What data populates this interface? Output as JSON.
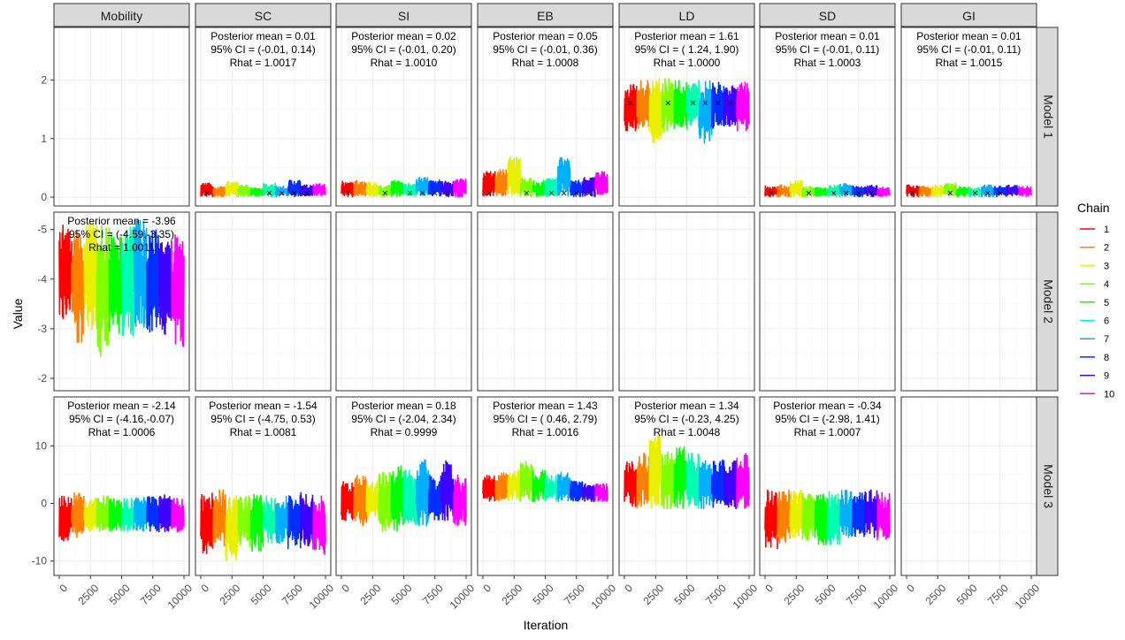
{
  "chart_data": {
    "type": "line",
    "xlabel": "Iteration",
    "ylabel": "Value",
    "x_ticks": [
      0,
      2500,
      5000,
      7500,
      10000
    ],
    "x_range": [
      0,
      10000
    ],
    "columns": [
      "Mobility",
      "SC",
      "SI",
      "EB",
      "LD",
      "SD",
      "GI"
    ],
    "rows": [
      {
        "label": "Model 1",
        "ylim": [
          -0.15,
          2.9
        ],
        "y_ticks": [
          0,
          1,
          2
        ],
        "reversed": false
      },
      {
        "label": "Model 2",
        "ylim": [
          -5.35,
          -1.75
        ],
        "y_ticks": [
          -2,
          -3,
          -4,
          -5
        ],
        "reversed": true
      },
      {
        "label": "Model 3",
        "ylim": [
          -12.5,
          18.5
        ],
        "y_ticks": [
          -10,
          0,
          10
        ],
        "reversed": false
      }
    ],
    "legend": {
      "title": "Chain",
      "position": "right",
      "items": [
        {
          "label": "1",
          "color": "#ff0000"
        },
        {
          "label": "2",
          "color": "#ff8000"
        },
        {
          "label": "3",
          "color": "#e8f000"
        },
        {
          "label": "4",
          "color": "#80ff00"
        },
        {
          "label": "5",
          "color": "#00ff00"
        },
        {
          "label": "6",
          "color": "#00ffb0"
        },
        {
          "label": "7",
          "color": "#00b0ff"
        },
        {
          "label": "8",
          "color": "#0030ff"
        },
        {
          "label": "9",
          "color": "#4000ff"
        },
        {
          "label": "10",
          "color": "#ff00ff"
        }
      ]
    },
    "panels": [
      {
        "row": 0,
        "col": 1,
        "mean": "Posterior mean = 0.01",
        "ci": "95% CI = (-0.01, 0.14)",
        "rhat": "Rhat = 1.0017",
        "chains": [
          [
            0,
            0.25
          ],
          [
            0,
            0.2
          ],
          [
            0,
            0.28
          ],
          [
            0,
            0.22
          ],
          [
            0,
            0.18
          ],
          [
            0,
            0.25
          ],
          [
            0,
            0.2
          ],
          [
            0,
            0.3
          ],
          [
            0,
            0.22
          ],
          [
            0,
            0.24
          ]
        ],
        "markers": [
          {
            "x": 500,
            "y": 0.07
          },
          {
            "x": 5500,
            "y": 0.07
          },
          {
            "x": 6500,
            "y": 0.07
          },
          {
            "x": 7500,
            "y": 0.07
          },
          {
            "x": 8500,
            "y": 0.07
          }
        ]
      },
      {
        "row": 0,
        "col": 2,
        "mean": "Posterior mean = 0.02",
        "ci": "95% CI = (-0.01, 0.20)",
        "rhat": "Rhat = 1.0010",
        "chains": [
          [
            0,
            0.28
          ],
          [
            0,
            0.3
          ],
          [
            0,
            0.26
          ],
          [
            0,
            0.22
          ],
          [
            0,
            0.3
          ],
          [
            0,
            0.25
          ],
          [
            0,
            0.35
          ],
          [
            0,
            0.3
          ],
          [
            0,
            0.28
          ],
          [
            0,
            0.32
          ]
        ],
        "markers": [
          {
            "x": 500,
            "y": 0.07
          },
          {
            "x": 3500,
            "y": 0.07
          },
          {
            "x": 5500,
            "y": 0.07
          },
          {
            "x": 6500,
            "y": 0.07
          },
          {
            "x": 7500,
            "y": 0.07
          },
          {
            "x": 8500,
            "y": 0.07
          }
        ]
      },
      {
        "row": 0,
        "col": 3,
        "mean": "Posterior mean = 0.05",
        "ci": "95% CI = (-0.01, 0.36)",
        "rhat": "Rhat = 1.0008",
        "chains": [
          [
            0,
            0.45
          ],
          [
            0,
            0.5
          ],
          [
            0,
            0.7
          ],
          [
            0,
            0.35
          ],
          [
            0,
            0.3
          ],
          [
            0,
            0.35
          ],
          [
            0,
            0.68
          ],
          [
            0,
            0.3
          ],
          [
            0,
            0.35
          ],
          [
            0,
            0.45
          ]
        ],
        "markers": [
          {
            "x": 500,
            "y": 0.07
          },
          {
            "x": 3500,
            "y": 0.07
          },
          {
            "x": 5500,
            "y": 0.07
          },
          {
            "x": 6500,
            "y": 0.07
          },
          {
            "x": 7500,
            "y": 0.07
          },
          {
            "x": 8500,
            "y": 0.07
          }
        ]
      },
      {
        "row": 0,
        "col": 4,
        "mean": "Posterior mean = 1.61",
        "ci": "95% CI = ( 1.24, 1.90)",
        "rhat": "Rhat = 1.0000",
        "chains": [
          [
            1.1,
            1.95
          ],
          [
            1.15,
            2.0
          ],
          [
            0.9,
            2.1
          ],
          [
            1.1,
            2.05
          ],
          [
            1.15,
            2.0
          ],
          [
            1.2,
            2.0
          ],
          [
            0.9,
            2.0
          ],
          [
            1.15,
            2.0
          ],
          [
            1.2,
            1.98
          ],
          [
            1.1,
            2.0
          ]
        ],
        "markers": [
          {
            "x": 500,
            "y": 1.61
          },
          {
            "x": 3500,
            "y": 1.61
          },
          {
            "x": 5500,
            "y": 1.61
          },
          {
            "x": 6500,
            "y": 1.61
          },
          {
            "x": 7500,
            "y": 1.61
          },
          {
            "x": 8500,
            "y": 1.61
          }
        ]
      },
      {
        "row": 0,
        "col": 5,
        "mean": "Posterior mean = 0.01",
        "ci": "95% CI = (-0.01, 0.11)",
        "rhat": "Rhat = 1.0003",
        "chains": [
          [
            0,
            0.2
          ],
          [
            0,
            0.22
          ],
          [
            0,
            0.3
          ],
          [
            0,
            0.2
          ],
          [
            0,
            0.18
          ],
          [
            0,
            0.22
          ],
          [
            0,
            0.25
          ],
          [
            0,
            0.2
          ],
          [
            0,
            0.22
          ],
          [
            0,
            0.18
          ]
        ],
        "markers": [
          {
            "x": 500,
            "y": 0.07
          },
          {
            "x": 3500,
            "y": 0.07
          },
          {
            "x": 5500,
            "y": 0.07
          },
          {
            "x": 6500,
            "y": 0.07
          },
          {
            "x": 7500,
            "y": 0.07
          },
          {
            "x": 8500,
            "y": 0.07
          }
        ]
      },
      {
        "row": 0,
        "col": 6,
        "mean": "Posterior mean = 0.01",
        "ci": "95% CI = (-0.01, 0.11)",
        "rhat": "Rhat = 1.0015",
        "chains": [
          [
            0,
            0.22
          ],
          [
            0,
            0.2
          ],
          [
            0,
            0.22
          ],
          [
            0,
            0.25
          ],
          [
            0,
            0.2
          ],
          [
            0,
            0.18
          ],
          [
            0,
            0.22
          ],
          [
            0,
            0.2
          ],
          [
            0,
            0.22
          ],
          [
            0,
            0.2
          ]
        ],
        "markers": [
          {
            "x": 500,
            "y": 0.07
          },
          {
            "x": 3500,
            "y": 0.07
          },
          {
            "x": 5500,
            "y": 0.07
          },
          {
            "x": 6500,
            "y": 0.07
          },
          {
            "x": 7500,
            "y": 0.07
          }
        ]
      },
      {
        "row": 1,
        "col": 0,
        "mean": "Posterior mean = -3.96",
        "ci": "95% CI = (-4.59,-3.35)",
        "rhat": "Rhat = 1.0011",
        "chains": [
          [
            -5.1,
            -3.1
          ],
          [
            -5.0,
            -2.7
          ],
          [
            -5.2,
            -2.9
          ],
          [
            -5.1,
            -2.4
          ],
          [
            -5.0,
            -2.9
          ],
          [
            -5.2,
            -2.8
          ],
          [
            -5.2,
            -3.0
          ],
          [
            -5.0,
            -2.9
          ],
          [
            -4.9,
            -2.8
          ],
          [
            -4.9,
            -2.6
          ]
        ],
        "markers": []
      },
      {
        "row": 2,
        "col": 0,
        "mean": "Posterior mean = -2.14",
        "ci": "95% CI = (-4.16,-0.07)",
        "rhat": "Rhat = 1.0006",
        "chains": [
          [
            -6.8,
            1.5
          ],
          [
            -6.0,
            2.0
          ],
          [
            -5.0,
            1.0
          ],
          [
            -5.0,
            1.5
          ],
          [
            -5.0,
            1.0
          ],
          [
            -5.0,
            1.0
          ],
          [
            -5.0,
            1.2
          ],
          [
            -5.0,
            1.3
          ],
          [
            -5.0,
            1.6
          ],
          [
            -5.2,
            1.0
          ]
        ],
        "markers": []
      },
      {
        "row": 2,
        "col": 1,
        "mean": "Posterior mean = -1.54",
        "ci": "95% CI = (-4.75, 0.53)",
        "rhat": "Rhat = 1.0081",
        "chains": [
          [
            -9.0,
            2.0
          ],
          [
            -8.0,
            2.5
          ],
          [
            -10.5,
            1.5
          ],
          [
            -8.0,
            1.5
          ],
          [
            -8.5,
            2.0
          ],
          [
            -7.0,
            1.5
          ],
          [
            -7.0,
            1.5
          ],
          [
            -8.0,
            1.5
          ],
          [
            -7.5,
            2.0
          ],
          [
            -9.0,
            1.5
          ]
        ],
        "markers": []
      },
      {
        "row": 2,
        "col": 2,
        "mean": "Posterior mean =  0.18",
        "ci": "95% CI = (-2.04, 2.34)",
        "rhat": "Rhat = 0.9999",
        "chains": [
          [
            -3.0,
            4.0
          ],
          [
            -4.0,
            5.0
          ],
          [
            -3.0,
            4.0
          ],
          [
            -5.0,
            6.0
          ],
          [
            -5.0,
            7.0
          ],
          [
            -4.0,
            6.0
          ],
          [
            -4.0,
            8.0
          ],
          [
            -3.0,
            5.0
          ],
          [
            -3.0,
            7.5
          ],
          [
            -4.0,
            5.0
          ]
        ],
        "markers": []
      },
      {
        "row": 2,
        "col": 3,
        "mean": "Posterior mean =  1.43",
        "ci": "95% CI = ( 0.46, 2.79)",
        "rhat": "Rhat = 1.0016",
        "chains": [
          [
            0.2,
            5.0
          ],
          [
            0.3,
            5.5
          ],
          [
            0.2,
            6.0
          ],
          [
            0.2,
            7.5
          ],
          [
            0.2,
            6.0
          ],
          [
            0.3,
            5.0
          ],
          [
            0.2,
            5.5
          ],
          [
            0.3,
            4.0
          ],
          [
            0.2,
            3.5
          ],
          [
            0.2,
            3.5
          ]
        ],
        "markers": []
      },
      {
        "row": 2,
        "col": 4,
        "mean": "Posterior mean =  1.34",
        "ci": "95% CI = (-0.23, 4.25)",
        "rhat": "Rhat = 1.0048",
        "chains": [
          [
            -1.0,
            8.0
          ],
          [
            -1.0,
            9.0
          ],
          [
            -1.0,
            12.0
          ],
          [
            -1.0,
            9.0
          ],
          [
            -1.0,
            10.0
          ],
          [
            -1.0,
            9.0
          ],
          [
            -1.0,
            8.0
          ],
          [
            -1.0,
            8.0
          ],
          [
            -1.0,
            7.5
          ],
          [
            -1.0,
            9.0
          ]
        ],
        "markers": []
      },
      {
        "row": 2,
        "col": 5,
        "mean": "Posterior mean = -0.34",
        "ci": "95% CI = (-2.98, 1.41)",
        "rhat": "Rhat = 1.0007",
        "chains": [
          [
            -8.0,
            2.5
          ],
          [
            -7.0,
            2.5
          ],
          [
            -6.0,
            2.5
          ],
          [
            -6.5,
            2.0
          ],
          [
            -7.5,
            2.0
          ],
          [
            -7.5,
            2.5
          ],
          [
            -6.5,
            2.5
          ],
          [
            -6.0,
            2.0
          ],
          [
            -6.0,
            2.5
          ],
          [
            -6.5,
            2.0
          ]
        ],
        "markers": []
      }
    ]
  }
}
